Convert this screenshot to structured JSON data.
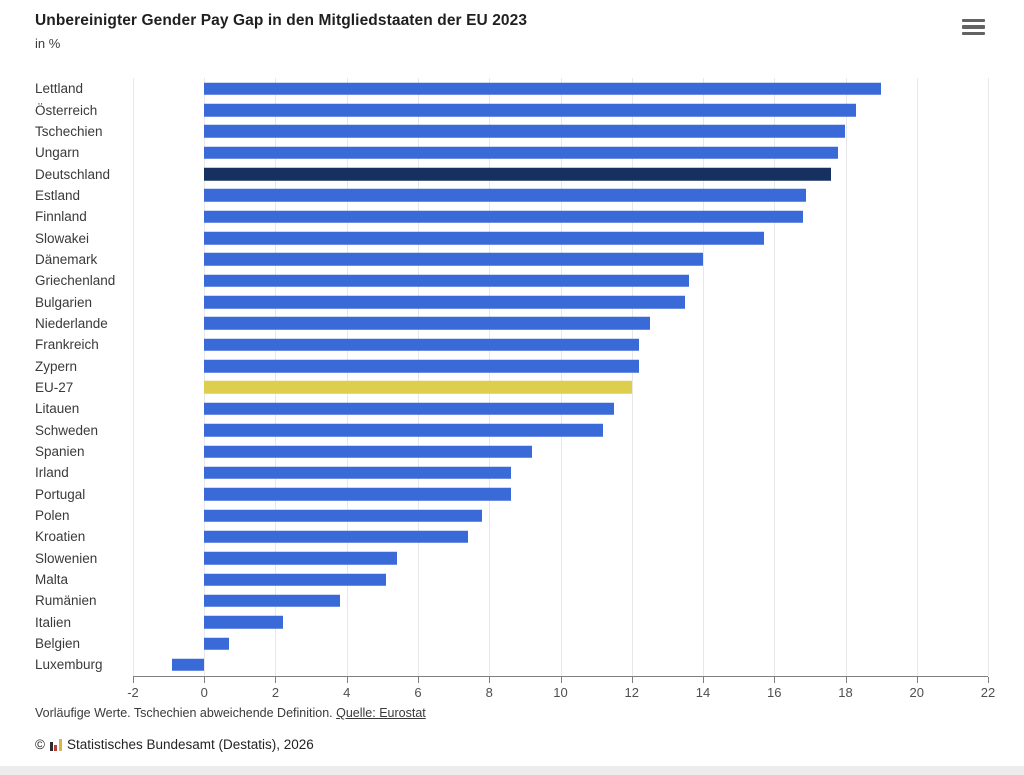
{
  "header": {
    "menu_icon": "hamburger-menu-icon"
  },
  "chart_data": {
    "type": "bar",
    "orientation": "horizontal",
    "title": "Unbereinigter Gender Pay Gap in den Mitgliedstaaten der EU 2023",
    "subtitle": "in %",
    "xlabel": "",
    "ylabel": "",
    "xlim": [
      -2,
      22
    ],
    "x_ticks": [
      -2,
      0,
      2,
      4,
      6,
      8,
      10,
      12,
      14,
      16,
      18,
      20,
      22
    ],
    "grid": true,
    "legend": "none",
    "bar_color": "#3a69d8",
    "highlight_colors": {
      "4": "#16305f",
      "14": "#ddcf4d"
    },
    "categories": [
      "Lettland",
      "Österreich",
      "Tschechien",
      "Ungarn",
      "Deutschland",
      "Estland",
      "Finnland",
      "Slowakei",
      "Dänemark",
      "Griechenland",
      "Bulgarien",
      "Niederlande",
      "Frankreich",
      "Zypern",
      "EU-27",
      "Litauen",
      "Schweden",
      "Spanien",
      "Irland",
      "Portugal",
      "Polen",
      "Kroatien",
      "Slowenien",
      "Malta",
      "Rumänien",
      "Italien",
      "Belgien",
      "Luxemburg"
    ],
    "values": [
      19.0,
      18.3,
      18.0,
      17.8,
      17.6,
      16.9,
      16.8,
      15.7,
      14.0,
      13.6,
      13.5,
      12.5,
      12.2,
      12.2,
      12.0,
      11.5,
      11.2,
      9.2,
      8.6,
      8.6,
      7.8,
      7.4,
      5.4,
      5.1,
      3.8,
      2.2,
      0.7,
      -0.9
    ]
  },
  "footer": {
    "footnote_prefix": "Vorläufige Werte. Tschechien abweichende Definition. ",
    "source_link": "Quelle: Eurostat",
    "copyright_symbol": "©",
    "copyright_text": "Statistisches Bundesamt (Destatis), 2026",
    "logo_icon": "destatis-bars-logo"
  }
}
